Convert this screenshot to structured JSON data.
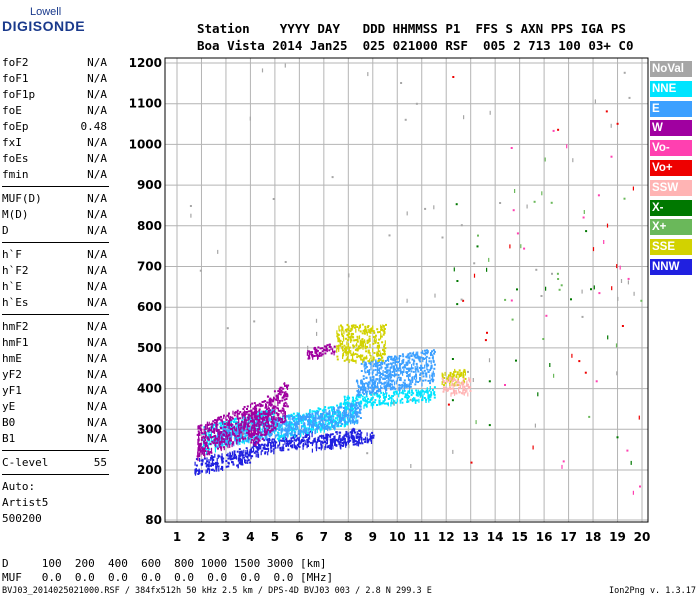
{
  "logo": {
    "line1": "Lowell",
    "line2": "DIGISONDE"
  },
  "header": {
    "labels": "Station    YYYY DAY   DDD HHMMSS P1  FFS S AXN PPS IGA PS",
    "values": "Boa Vista 2014 Jan25  025 021000 RSF  005 2 713 100 03+ C0"
  },
  "params": [
    {
      "name": "foF2",
      "value": "N/A"
    },
    {
      "name": "foF1",
      "value": "N/A"
    },
    {
      "name": "foF1p",
      "value": "N/A"
    },
    {
      "name": "foE",
      "value": "N/A"
    },
    {
      "name": "foEp",
      "value": "0.48"
    },
    {
      "name": "fxI",
      "value": "N/A"
    },
    {
      "name": "foEs",
      "value": "N/A"
    },
    {
      "name": "fmin",
      "value": "N/A"
    }
  ],
  "params_muf": [
    {
      "name": "MUF(D)",
      "value": "N/A"
    },
    {
      "name": "M(D)",
      "value": "N/A"
    },
    {
      "name": "D",
      "value": "N/A"
    }
  ],
  "params_h": [
    {
      "name": "h`F",
      "value": "N/A"
    },
    {
      "name": "h`F2",
      "value": "N/A"
    },
    {
      "name": "h`E",
      "value": "N/A"
    },
    {
      "name": "h`Es",
      "value": "N/A"
    }
  ],
  "params_hm": [
    {
      "name": "hmF2",
      "value": "N/A"
    },
    {
      "name": "hmF1",
      "value": "N/A"
    },
    {
      "name": "hmE",
      "value": "N/A"
    },
    {
      "name": "yF2",
      "value": "N/A"
    },
    {
      "name": "yF1",
      "value": "N/A"
    },
    {
      "name": "yE",
      "value": "N/A"
    },
    {
      "name": "B0",
      "value": "N/A"
    },
    {
      "name": "B1",
      "value": "N/A"
    }
  ],
  "clevel": {
    "name": "C-level",
    "value": "55"
  },
  "notes": [
    "Auto:",
    "Artist5",
    "500200"
  ],
  "bottom": {
    "d_row": "D     100  200  400  600  800 1000 1500 3000 [km]",
    "muf_row": "MUF   0.0  0.0  0.0  0.0  0.0  0.0  0.0  0.0 [MHz]"
  },
  "footer": "BVJ03_2014025021000.RSF / 384fx512h 50 kHz 2.5 km / DPS-4D BVJ03 003 / 2.8 N 299.3 E",
  "version": "Ion2Png v. 1.3.17",
  "legend": [
    {
      "label": "NoVal",
      "color": "#a6a6a6"
    },
    {
      "label": "NNE",
      "color": "#00e4ff"
    },
    {
      "label": "E",
      "color": "#3ca0ff"
    },
    {
      "label": "W",
      "color": "#a000a0"
    },
    {
      "label": "Vo-",
      "color": "#ff40b0"
    },
    {
      "label": "Vo+",
      "color": "#ee0000"
    },
    {
      "label": "SSW",
      "color": "#ffb4b4"
    },
    {
      "label": "X-",
      "color": "#007800"
    },
    {
      "label": "X+",
      "color": "#6ab85a"
    },
    {
      "label": "SSE",
      "color": "#d2d200"
    },
    {
      "label": "NNW",
      "color": "#2020e0"
    }
  ],
  "chart_data": {
    "type": "scatter",
    "title": "",
    "xlabel": "",
    "ylabel": "",
    "xlim": [
      1,
      20
    ],
    "ylim": [
      80,
      1200
    ],
    "x_ticks": [
      1,
      2,
      3,
      4,
      5,
      6,
      7,
      8,
      9,
      10,
      11,
      12,
      13,
      14,
      15,
      16,
      17,
      18,
      19,
      20
    ],
    "y_ticks": [
      80,
      200,
      300,
      400,
      500,
      600,
      700,
      800,
      900,
      1000,
      1100,
      1200
    ],
    "grid": true,
    "legend_position": "right",
    "series": [
      {
        "name": "NNW",
        "color": "#2020e0",
        "clusters": [
          {
            "x": [
              1.7,
              4.0
            ],
            "y": [
              200,
              250
            ]
          },
          {
            "x": [
              4.0,
              6.5
            ],
            "y": [
              245,
              290
            ]
          },
          {
            "x": [
              6.5,
              8.5
            ],
            "y": [
              260,
              300
            ]
          },
          {
            "x": [
              7.0,
              9.0
            ],
            "y": [
              260,
              290
            ]
          }
        ]
      },
      {
        "name": "NNE",
        "color": "#00e4ff",
        "clusters": [
          {
            "x": [
              2.0,
              5.0
            ],
            "y": [
              260,
              340
            ]
          },
          {
            "x": [
              5.0,
              8.3
            ],
            "y": [
              290,
              360
            ]
          },
          {
            "x": [
              7.8,
              11.5
            ],
            "y": [
              360,
              400
            ]
          }
        ]
      },
      {
        "name": "E",
        "color": "#3ca0ff",
        "clusters": [
          {
            "x": [
              2.5,
              6.0
            ],
            "y": [
              270,
              330
            ]
          },
          {
            "x": [
              6.0,
              8.5
            ],
            "y": [
              300,
              360
            ]
          },
          {
            "x": [
              8.3,
              11.5
            ],
            "y": [
              395,
              450
            ]
          },
          {
            "x": [
              8.5,
              11.5
            ],
            "y": [
              440,
              490
            ]
          }
        ]
      },
      {
        "name": "W",
        "color": "#a000a0",
        "clusters": [
          {
            "x": [
              1.8,
              4.2
            ],
            "y": [
              250,
              350
            ]
          },
          {
            "x": [
              4.0,
              5.5
            ],
            "y": [
              280,
              400
            ]
          },
          {
            "x": [
              6.3,
              7.5
            ],
            "y": [
              480,
              510
            ]
          }
        ]
      },
      {
        "name": "SSE",
        "color": "#d2d200",
        "clusters": [
          {
            "x": [
              7.5,
              9.5
            ],
            "y": [
              470,
              560
            ]
          },
          {
            "x": [
              11.8,
              12.8
            ],
            "y": [
              410,
              450
            ]
          }
        ]
      },
      {
        "name": "SSW",
        "color": "#ffb4b4",
        "clusters": [
          {
            "x": [
              11.8,
              13.0
            ],
            "y": [
              390,
              430
            ]
          }
        ]
      },
      {
        "name": "Vo+",
        "color": "#ee0000",
        "clusters": [
          {
            "x": [
              12.0,
              20.0
            ],
            "y": [
              200,
              1200
            ]
          }
        ]
      },
      {
        "name": "Vo-",
        "color": "#ff40b0",
        "clusters": [
          {
            "x": [
              14.0,
              20.0
            ],
            "y": [
              100,
              1100
            ]
          }
        ]
      },
      {
        "name": "X-",
        "color": "#007800",
        "clusters": [
          {
            "x": [
              12.0,
              20.0
            ],
            "y": [
              200,
              900
            ]
          }
        ]
      },
      {
        "name": "X+",
        "color": "#6ab85a",
        "clusters": [
          {
            "x": [
              12.0,
              20.0
            ],
            "y": [
              300,
              1000
            ]
          }
        ]
      },
      {
        "name": "NoVal",
        "color": "#a6a6a6",
        "clusters": [
          {
            "x": [
              1.5,
              20.0
            ],
            "y": [
              200,
              1200
            ]
          }
        ]
      }
    ]
  }
}
